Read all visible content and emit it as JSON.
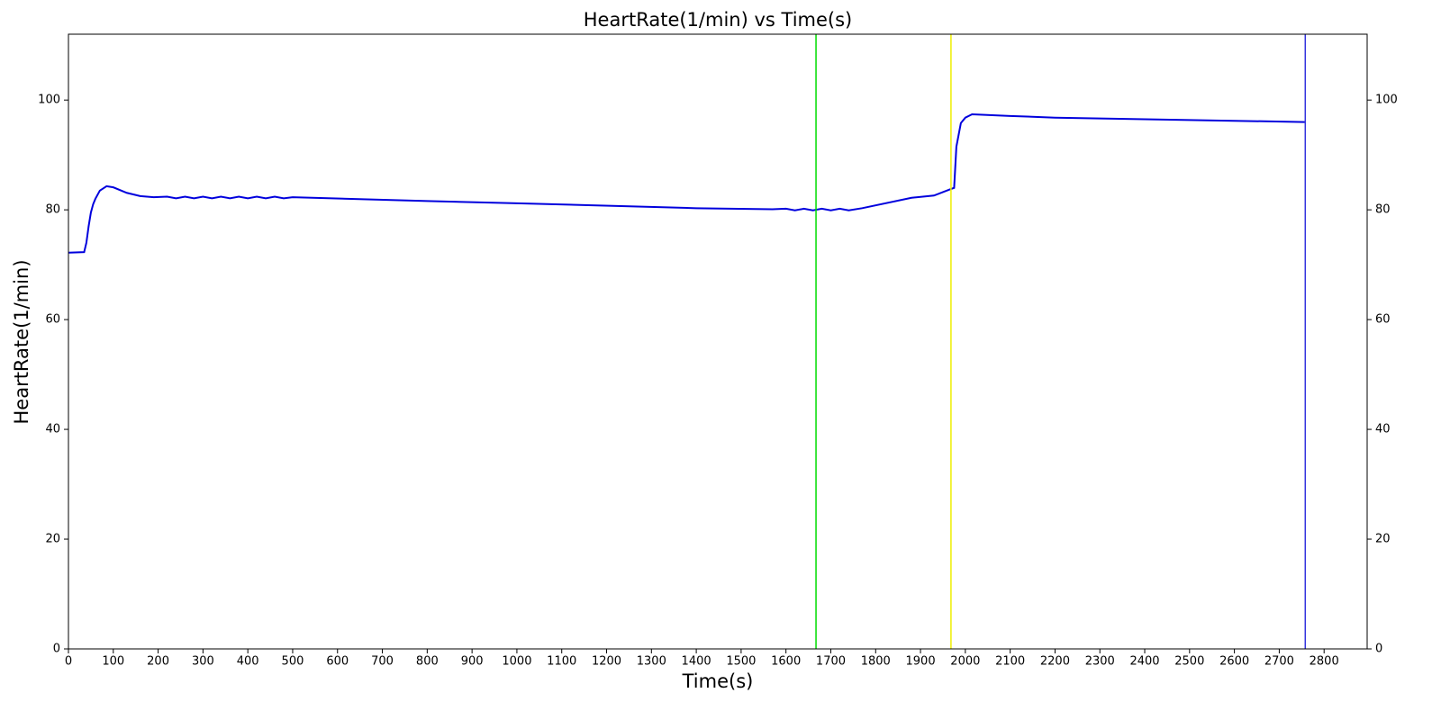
{
  "chart_data": {
    "type": "line",
    "title": "HeartRate(1/min) vs Time(s)",
    "x_label": "Time(s)",
    "y_label": "HeartRate(1/min)",
    "x": [
      0,
      35,
      40,
      45,
      50,
      55,
      60,
      70,
      85,
      100,
      130,
      160,
      190,
      220,
      240,
      260,
      280,
      300,
      320,
      340,
      360,
      380,
      400,
      420,
      440,
      460,
      480,
      500,
      800,
      1000,
      1400,
      1570,
      1600,
      1620,
      1640,
      1660,
      1680,
      1700,
      1720,
      1740,
      1770,
      1880,
      1930,
      1965,
      1975,
      1980,
      1990,
      2000,
      2015,
      2100,
      2200,
      2400,
      2757
    ],
    "values": [
      72.2,
      72.3,
      74,
      77,
      79.5,
      81,
      82,
      83.5,
      84.3,
      84.1,
      83.1,
      82.5,
      82.3,
      82.4,
      82.1,
      82.4,
      82.1,
      82.4,
      82.1,
      82.4,
      82.1,
      82.4,
      82.1,
      82.4,
      82.1,
      82.4,
      82.1,
      82.3,
      81.6,
      81.2,
      80.3,
      80.1,
      80.2,
      79.9,
      80.2,
      79.9,
      80.2,
      79.9,
      80.2,
      79.9,
      80.3,
      82.2,
      82.6,
      83.7,
      84.0,
      91.5,
      95.8,
      96.8,
      97.4,
      97.1,
      96.8,
      96.5,
      96.0
    ],
    "color": "#0000dd",
    "vlines": [
      {
        "x": 1667,
        "color": "#00dd00"
      },
      {
        "x": 1968,
        "color": "#eeee00"
      },
      {
        "x": 2758,
        "color": "#3333dd"
      }
    ],
    "xlim": [
      0,
      2896
    ],
    "ylim": [
      0,
      112
    ],
    "xticks": [
      0,
      100,
      200,
      300,
      400,
      500,
      600,
      700,
      800,
      900,
      1000,
      1100,
      1200,
      1300,
      1400,
      1500,
      1600,
      1700,
      1800,
      1900,
      2000,
      2100,
      2200,
      2300,
      2400,
      2500,
      2600,
      2700,
      2800
    ],
    "yticks": [
      0,
      20,
      40,
      60,
      80,
      100
    ],
    "right_axis": true
  }
}
